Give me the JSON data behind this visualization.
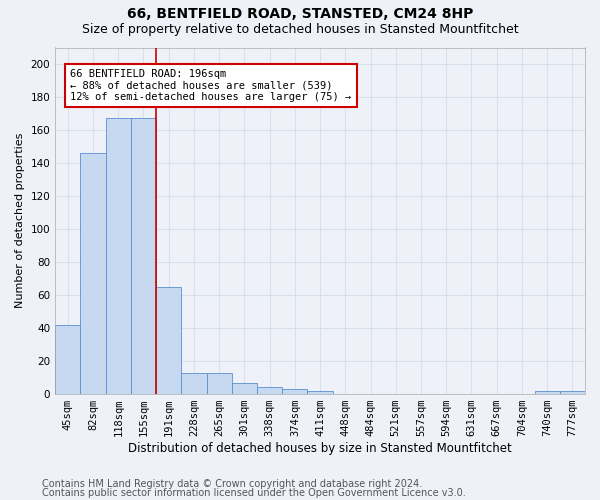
{
  "title": "66, BENTFIELD ROAD, STANSTED, CM24 8HP",
  "subtitle": "Size of property relative to detached houses in Stansted Mountfitchet",
  "xlabel": "Distribution of detached houses by size in Stansted Mountfitchet",
  "ylabel": "Number of detached properties",
  "categories": [
    "45sqm",
    "82sqm",
    "118sqm",
    "155sqm",
    "191sqm",
    "228sqm",
    "265sqm",
    "301sqm",
    "338sqm",
    "374sqm",
    "411sqm",
    "448sqm",
    "484sqm",
    "521sqm",
    "557sqm",
    "594sqm",
    "631sqm",
    "667sqm",
    "704sqm",
    "740sqm",
    "777sqm"
  ],
  "values": [
    42,
    146,
    167,
    167,
    65,
    13,
    13,
    7,
    4,
    3,
    2,
    0,
    0,
    0,
    0,
    0,
    0,
    0,
    0,
    2,
    2
  ],
  "bar_color": "#c6d9f0",
  "bar_edge_color": "#5b8fd4",
  "vline_x": 3.5,
  "annotation_text": "66 BENTFIELD ROAD: 196sqm\n← 88% of detached houses are smaller (539)\n12% of semi-detached houses are larger (75) →",
  "annotation_box_color": "#ffffff",
  "annotation_box_edge_color": "#cc0000",
  "vline_color": "#cc0000",
  "ylim": [
    0,
    210
  ],
  "yticks": [
    0,
    20,
    40,
    60,
    80,
    100,
    120,
    140,
    160,
    180,
    200
  ],
  "footer1": "Contains HM Land Registry data © Crown copyright and database right 2024.",
  "footer2": "Contains public sector information licensed under the Open Government Licence v3.0.",
  "background_color": "#eef2f8",
  "grid_color": "#d8e0ec",
  "title_fontsize": 10,
  "subtitle_fontsize": 9,
  "xlabel_fontsize": 8.5,
  "ylabel_fontsize": 8,
  "tick_fontsize": 7.5,
  "footer_fontsize": 7,
  "annot_fontsize": 7.5
}
